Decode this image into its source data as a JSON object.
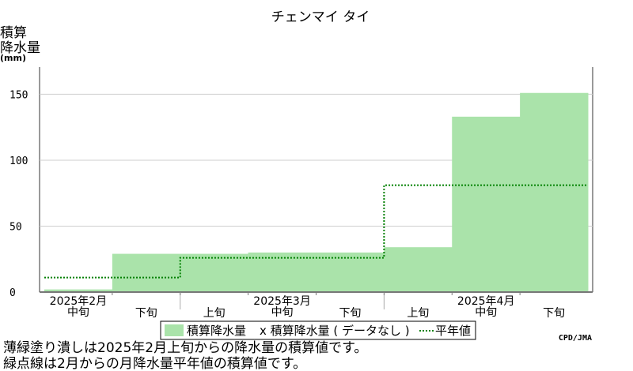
{
  "chart_data": {
    "type": "area",
    "title": "チェンマイ タイ",
    "ylabel_lines": [
      "積算",
      "降水量",
      "(mm)"
    ],
    "ylim": [
      0,
      170
    ],
    "yticks": [
      0,
      50,
      100,
      150
    ],
    "x_periods": [
      {
        "month": "2025年2月",
        "dekad": "中旬"
      },
      {
        "month": "2025年2月",
        "dekad": "下旬"
      },
      {
        "month": "2025年3月",
        "dekad": "上旬"
      },
      {
        "month": "2025年3月",
        "dekad": "中旬"
      },
      {
        "month": "2025年3月",
        "dekad": "下旬"
      },
      {
        "month": "2025年4月",
        "dekad": "上旬"
      },
      {
        "month": "2025年4月",
        "dekad": "中旬"
      },
      {
        "month": "2025年4月",
        "dekad": "下旬"
      }
    ],
    "month_labels": [
      "2025年2月",
      "2025年3月",
      "2025年4月"
    ],
    "series": [
      {
        "name": "積算降水量",
        "type": "step-area",
        "color": "#aae3aa",
        "values": [
          2,
          29,
          29,
          30,
          30,
          34,
          133,
          151
        ]
      },
      {
        "name": "平年値",
        "type": "step-dotted-line",
        "color": "#008000",
        "values": [
          11,
          11,
          26,
          26,
          26,
          81,
          81,
          81
        ]
      }
    ],
    "legend": {
      "items": [
        "積算降水量",
        "x 積算降水量 ( データなし )",
        "平年値"
      ],
      "placement": "bottom"
    },
    "credit": "CPD/JMA"
  },
  "notes": [
    "薄緑塗り潰しは2025年2月上旬からの降水量の積算値です。",
    "緑点線は2月からの月降水量平年値の積算値です。"
  ]
}
